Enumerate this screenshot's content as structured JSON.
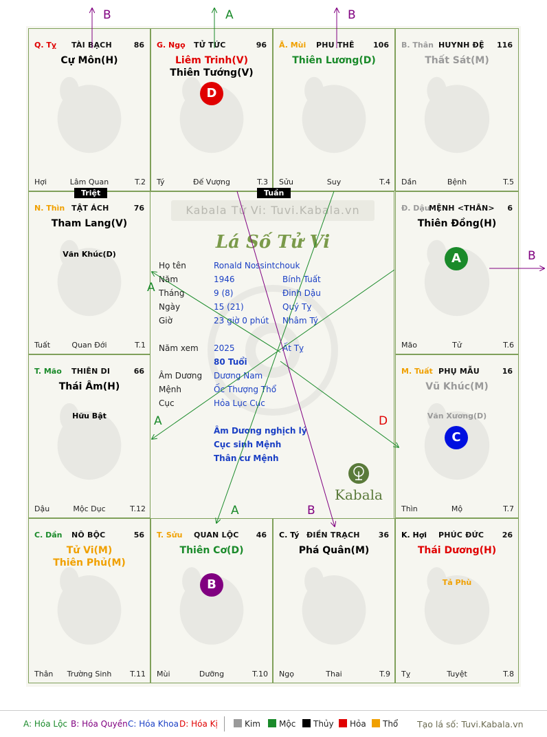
{
  "watermark": "Kabala Tử Vi: Tuvi.Kabala.vn",
  "chart_title": "Lá Số Tử Vi",
  "logo_text": "Kabala",
  "colors": {
    "kim": "#9a9a9a",
    "moc": "#1a8a2a",
    "thuy": "#000000",
    "hoa": "#e00000",
    "tho": "#f0a000",
    "green": "#1a8a2a",
    "purple": "#800080",
    "blue": "#1a3fc4"
  },
  "palaces": [
    {
      "id": "ty-top",
      "branch": "Q. Tỵ",
      "branch_color": "#e00000",
      "name": "TÀI BẠCH",
      "num": "86",
      "stars": [
        {
          "text": "Cự Môn(H)",
          "color": "#000000"
        }
      ],
      "minor": [],
      "bottom_left": "Hợi",
      "bottom_center": "Lâm Quan",
      "bottom_right": "T.2"
    },
    {
      "id": "ngo",
      "branch": "G. Ngọ",
      "branch_color": "#e00000",
      "name": "TỬ TỨC",
      "num": "96",
      "stars": [
        {
          "text": "Liêm Trinh(V)",
          "color": "#e00000"
        },
        {
          "text": "Thiên Tướng(V)",
          "color": "#000000"
        }
      ],
      "minor": [],
      "bottom_left": "Tý",
      "bottom_center": "Đế Vượng",
      "bottom_right": "T.3"
    },
    {
      "id": "mui-top",
      "branch": "Ã. Mùi",
      "branch_color": "#f0a000",
      "name": "PHU THÊ",
      "num": "106",
      "stars": [
        {
          "text": "Thiên Lương(D)",
          "color": "#1a8a2a"
        }
      ],
      "minor": [],
      "bottom_left": "Sửu",
      "bottom_center": "Suy",
      "bottom_right": "T.4"
    },
    {
      "id": "than-top",
      "branch": "B. Thân",
      "branch_color": "#9a9a9a",
      "name": "HUYNH ĐỆ",
      "num": "116",
      "stars": [
        {
          "text": "Thất Sát(M)",
          "color": "#9a9a9a"
        }
      ],
      "minor": [],
      "bottom_left": "Dần",
      "bottom_center": "Bệnh",
      "bottom_right": "T.5"
    },
    {
      "id": "thin",
      "branch": "N. Thìn",
      "branch_color": "#f0a000",
      "name": "TẬT ÁCH",
      "num": "76",
      "stars": [
        {
          "text": "Tham Lang(V)",
          "color": "#000000"
        }
      ],
      "minor": [
        {
          "text": "Văn Khúc(D)",
          "color": "#000000"
        }
      ],
      "bottom_left": "Tuất",
      "bottom_center": "Quan Đới",
      "bottom_right": "T.1"
    },
    {
      "id": "dau",
      "branch": "Đ. Dậu",
      "branch_color": "#9a9a9a",
      "name": "MỆNH <THÂN>",
      "num": "6",
      "stars": [
        {
          "text": "Thiên Đồng(H)",
          "color": "#000000"
        }
      ],
      "minor": [],
      "bottom_left": "Mão",
      "bottom_center": "Tử",
      "bottom_right": "T.6"
    },
    {
      "id": "mao",
      "branch": "T. Mão",
      "branch_color": "#1a8a2a",
      "name": "THIÊN DI",
      "num": "66",
      "stars": [
        {
          "text": "Thái Âm(H)",
          "color": "#000000"
        }
      ],
      "minor": [
        {
          "text": "Hữu Bật",
          "color": "#000000"
        }
      ],
      "bottom_left": "Dậu",
      "bottom_center": "Mộc Dục",
      "bottom_right": "T.12"
    },
    {
      "id": "tuat",
      "branch": "M. Tuất",
      "branch_color": "#f0a000",
      "name": "PHỤ MẪU",
      "num": "16",
      "stars": [
        {
          "text": "Vũ Khúc(M)",
          "color": "#9a9a9a"
        }
      ],
      "minor": [
        {
          "text": "Văn Xương(D)",
          "color": "#9a9a9a"
        }
      ],
      "bottom_left": "Thìn",
      "bottom_center": "Mộ",
      "bottom_right": "T.7"
    },
    {
      "id": "dan",
      "branch": "C. Dần",
      "branch_color": "#1a8a2a",
      "name": "NÔ BỘC",
      "num": "56",
      "stars": [
        {
          "text": "Tử Vi(M)",
          "color": "#f0a000"
        },
        {
          "text": "Thiên Phủ(M)",
          "color": "#f0a000"
        }
      ],
      "minor": [],
      "bottom_left": "Thân",
      "bottom_center": "Trường Sinh",
      "bottom_right": "T.11"
    },
    {
      "id": "suu",
      "branch": "T. Sửu",
      "branch_color": "#f0a000",
      "name": "QUAN LỘC",
      "num": "46",
      "stars": [
        {
          "text": "Thiên Cơ(D)",
          "color": "#1a8a2a"
        }
      ],
      "minor": [],
      "bottom_left": "Mùi",
      "bottom_center": "Dưỡng",
      "bottom_right": "T.10"
    },
    {
      "id": "ty-bottom",
      "branch": "C. Tý",
      "branch_color": "#000000",
      "name": "ĐIỀN TRẠCH",
      "num": "36",
      "stars": [
        {
          "text": "Phá Quân(M)",
          "color": "#000000"
        }
      ],
      "minor": [],
      "bottom_left": "Ngọ",
      "bottom_center": "Thai",
      "bottom_right": "T.9"
    },
    {
      "id": "hoi",
      "branch": "K. Hợi",
      "branch_color": "#000000",
      "name": "PHÚC ĐỨC",
      "num": "26",
      "stars": [
        {
          "text": "Thái Dương(H)",
          "color": "#e00000"
        }
      ],
      "minor": [
        {
          "text": "Tả Phù",
          "color": "#f0a000"
        }
      ],
      "bottom_left": "Tỵ",
      "bottom_center": "Tuyệt",
      "bottom_right": "T.8"
    }
  ],
  "tags": {
    "triet": "Triệt",
    "tuan": "Tuần"
  },
  "circles": {
    "ngo": "D",
    "dau": "A",
    "tuat": "C",
    "suu": "B"
  },
  "info": {
    "ho_ten_label": "Họ tên",
    "ho_ten": "Ronald Nossintchouk",
    "nam_label": "Năm",
    "nam": "1946",
    "nam_can": "Bính Tuất",
    "thang_label": "Tháng",
    "thang": "9  (8)",
    "thang_can": "Đinh Dậu",
    "ngay_label": "Ngày",
    "ngay": "15  (21)",
    "ngay_can": "Quý Tỵ",
    "gio_label": "Giờ",
    "gio": "23 giờ 0 phút",
    "gio_can": "Nhâm Tý",
    "namxem_label": "Năm xem",
    "namxem": "2025",
    "namxem_can": "Ất Tỵ",
    "tuoi": "80 Tuổi",
    "amduong_label": "Âm Dương",
    "amduong": "Dương Nam",
    "menh_label": "Mệnh",
    "menh": "Ốc Thượng Thổ",
    "cuc_label": "Cục",
    "cuc": "Hỏa Lục Cục",
    "note1": "Âm Dương nghịch lý",
    "note2": "Cục sinh Mệnh",
    "note3": "Thân cư Mệnh"
  },
  "arrow_labels": {
    "b1": "B",
    "a1": "A",
    "b2": "B",
    "b3": "B",
    "a2": "A",
    "a3": "A",
    "d1": "D",
    "a4": "A",
    "b4": "B"
  },
  "legend": {
    "a": "A: Hóa Lộc",
    "b": "B: Hóa Quyền",
    "c": "C: Hóa Khoa",
    "d": "D: Hóa Kị",
    "kim": "Kim",
    "moc": "Mộc",
    "thuy": "Thủy",
    "hoa": "Hỏa",
    "tho": "Thổ",
    "credit": "Tạo lá số: Tuvi.Kabala.vn"
  }
}
